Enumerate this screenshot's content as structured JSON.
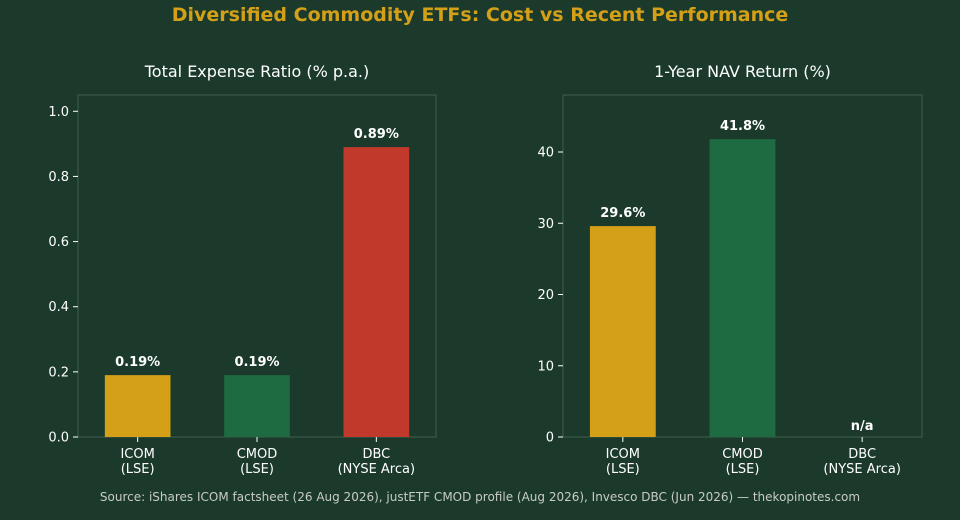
{
  "title": "Diversified Commodity ETFs: Cost vs Recent Performance",
  "source": "Source: iShares ICOM factsheet (26 Aug 2026), justETF CMOD profile (Aug 2026), Invesco DBC (Jun 2026) — thekopinotes.com",
  "colors": {
    "background": "#1b3a2b",
    "title": "#d4a017",
    "gold": "#d4a017",
    "green": "#1f6b41",
    "red": "#c0392b"
  },
  "chart_data": [
    {
      "type": "bar",
      "title": "Total Expense Ratio (% p.a.)",
      "categories": [
        "ICOM\n(LSE)",
        "CMOD\n(LSE)",
        "DBC\n(NYSE Arca)"
      ],
      "values": [
        0.19,
        0.19,
        0.89
      ],
      "data_labels": [
        "0.19%",
        "0.19%",
        "0.89%"
      ],
      "bar_colors": [
        "#d4a017",
        "#1f6b41",
        "#c0392b"
      ],
      "ylim": [
        0,
        1.05
      ],
      "yticks": [
        0.0,
        0.2,
        0.4,
        0.6,
        0.8,
        1.0
      ],
      "ytick_labels": [
        "0.0",
        "0.2",
        "0.4",
        "0.6",
        "0.8",
        "1.0"
      ],
      "xlabel": "",
      "ylabel": ""
    },
    {
      "type": "bar",
      "title": "1-Year NAV Return (%)",
      "categories": [
        "ICOM\n(LSE)",
        "CMOD\n(LSE)",
        "DBC\n(NYSE Arca)"
      ],
      "values": [
        29.6,
        41.8,
        null
      ],
      "data_labels": [
        "29.6%",
        "41.8%",
        "n/a"
      ],
      "bar_colors": [
        "#d4a017",
        "#1f6b41",
        "#c0392b"
      ],
      "ylim": [
        0,
        48
      ],
      "yticks": [
        0,
        10,
        20,
        30,
        40
      ],
      "ytick_labels": [
        "0",
        "10",
        "20",
        "30",
        "40"
      ],
      "xlabel": "",
      "ylabel": ""
    }
  ]
}
